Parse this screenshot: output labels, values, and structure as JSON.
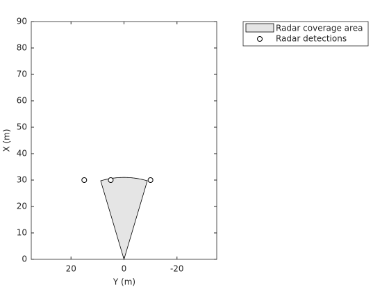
{
  "chart_data": {
    "type": "scatter",
    "xlabel": "Y (m)",
    "ylabel": "X (m)",
    "xlim": [
      35,
      -35
    ],
    "xticks": [
      20,
      0,
      -20
    ],
    "ylim": [
      0,
      90
    ],
    "yticks": [
      0,
      10,
      20,
      30,
      40,
      50,
      60,
      70,
      80,
      90
    ],
    "coverage": {
      "name": "Radar coverage area",
      "range": 31,
      "fov": 33,
      "color": "#e5e5e5"
    },
    "series": [
      {
        "name": "Radar detections",
        "color": "#000000",
        "x": [
          15,
          5,
          -10
        ],
        "values": [
          30,
          30,
          30
        ]
      }
    ]
  }
}
